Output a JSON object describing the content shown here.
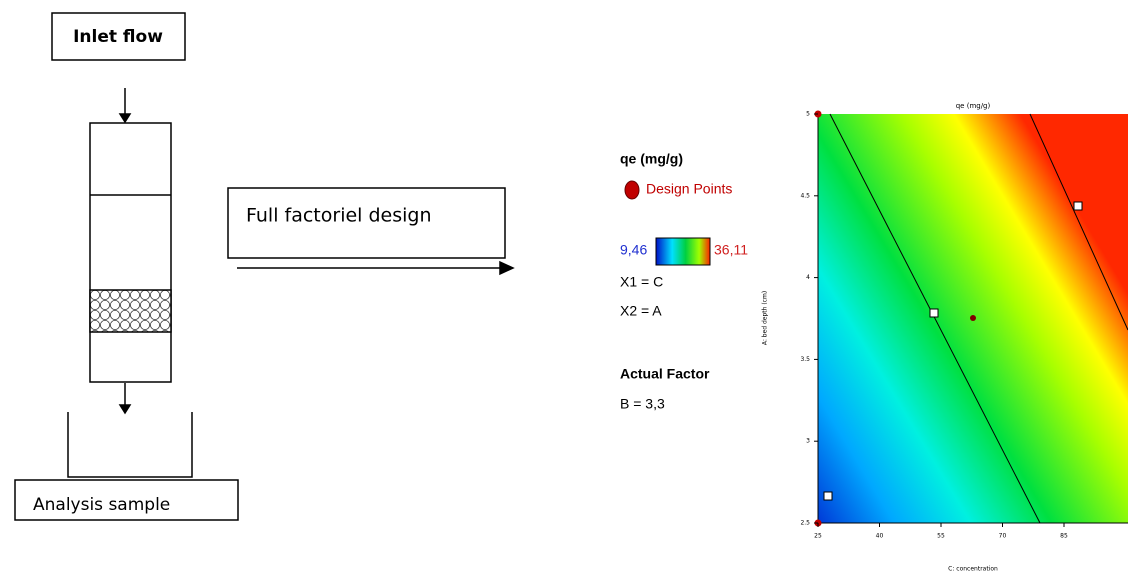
{
  "process": {
    "inlet": "Inlet flow",
    "design": "Full factoriel design",
    "outlet": "Analysis  sample"
  },
  "legend": {
    "title": "qe (mg/g)",
    "points": "Design Points",
    "low": "9,46",
    "high": "36,11",
    "x1": "X1 = C",
    "x2": "X2 = A",
    "actual_title": "Actual Factor",
    "actual": "B = 3,3"
  },
  "plot": {
    "title": "qe (mg/g)",
    "x_label": "C: concentration",
    "y_label": "A: bed depth (cm)",
    "x_ticks": [
      "25",
      "40",
      "55",
      "70",
      "85"
    ],
    "y_ticks": [
      "5",
      "4.5",
      "4",
      "3.5",
      "3",
      "2.5"
    ]
  }
}
